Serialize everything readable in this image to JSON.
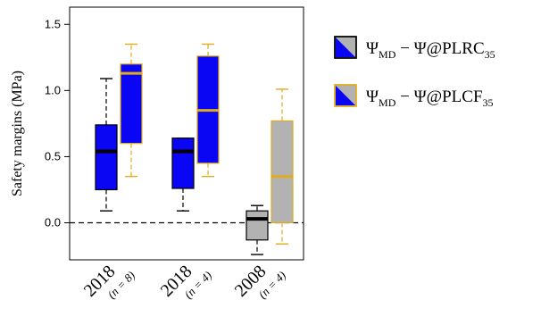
{
  "chart_data": {
    "type": "box",
    "ylabel": "Safety margins (MPa)",
    "ylim": [
      -0.28,
      1.63
    ],
    "yticks": [
      0.0,
      0.5,
      1.0,
      1.5
    ],
    "ytick_labels": [
      "0.0",
      "0.5",
      "1.0",
      "1.5"
    ],
    "reference_line": 0.0,
    "grid": false,
    "legend_position": "right",
    "categories": [
      {
        "year": "2018",
        "n_label": "(n = 8)"
      },
      {
        "year": "2018",
        "n_label": "(n = 4)"
      },
      {
        "year": "2008",
        "n_label": "(n = 4)"
      }
    ],
    "series": [
      {
        "name": "Ψ_MD − Ψ@PLRC35",
        "legend_main": "Ψ",
        "legend_sub1": "MD",
        "legend_mid": " − Ψ@PLRC",
        "legend_sub2": "35",
        "box_stats": [
          {
            "whisker_low": 0.09,
            "q1": 0.25,
            "median": 0.54,
            "q3": 0.74,
            "whisker_high": 1.09,
            "color": "#0a06f4",
            "border": "#000000"
          },
          {
            "whisker_low": 0.09,
            "q1": 0.26,
            "median": 0.54,
            "q3": 0.64,
            "whisker_high": 0.64,
            "color": "#0a06f4",
            "border": "#000000"
          },
          {
            "whisker_low": -0.24,
            "q1": -0.13,
            "median": 0.03,
            "q3": 0.09,
            "whisker_high": 0.13,
            "color": "#b2b2b2",
            "border": "#000000"
          }
        ]
      },
      {
        "name": "Ψ_MD − Ψ@PLCF35",
        "legend_main": "Ψ",
        "legend_sub1": "MD",
        "legend_mid": " − Ψ@PLCF",
        "legend_sub2": "35",
        "box_stats": [
          {
            "whisker_low": 0.35,
            "q1": 0.6,
            "median": 1.13,
            "q3": 1.2,
            "whisker_high": 1.35,
            "color": "#0a06f4",
            "border": "#e0ac1e"
          },
          {
            "whisker_low": 0.35,
            "q1": 0.45,
            "median": 0.85,
            "q3": 1.26,
            "whisker_high": 1.35,
            "color": "#0a06f4",
            "border": "#e0ac1e"
          },
          {
            "whisker_low": -0.16,
            "q1": 0.0,
            "median": 0.35,
            "q3": 0.77,
            "whisker_high": 1.01,
            "color": "#b2b2b2",
            "border": "#e0ac1e"
          }
        ]
      }
    ],
    "colors": {
      "accent_blue": "#0a06f4",
      "gold": "#e0ac1e",
      "gray": "#b2b2b2",
      "black": "#000000"
    }
  }
}
